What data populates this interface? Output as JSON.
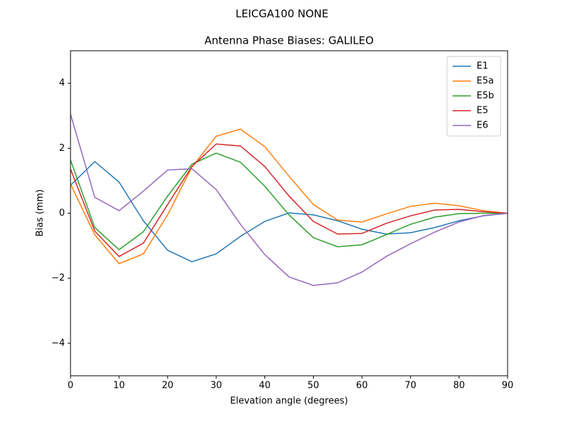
{
  "chart_data": {
    "type": "line",
    "suptitle": "LEICGA100        NONE",
    "title": "Antenna Phase Biases: GALILEO",
    "x_label": "Elevation angle (degrees)",
    "y_label": "Bias (mm)",
    "x": [
      0,
      5,
      10,
      15,
      20,
      25,
      30,
      35,
      40,
      45,
      50,
      55,
      60,
      65,
      70,
      75,
      80,
      85,
      90
    ],
    "series": [
      {
        "name": "E1",
        "color": "#1f77b4",
        "values": [
          0.86,
          1.59,
          0.96,
          -0.23,
          -1.14,
          -1.49,
          -1.25,
          -0.71,
          -0.25,
          0.01,
          -0.05,
          -0.23,
          -0.49,
          -0.64,
          -0.6,
          -0.44,
          -0.23,
          -0.08,
          0
        ]
      },
      {
        "name": "E5a",
        "color": "#ff7f0e",
        "values": [
          0.9,
          -0.66,
          -1.55,
          -1.25,
          -0.05,
          1.42,
          2.37,
          2.59,
          2.05,
          1.14,
          0.27,
          -0.21,
          -0.27,
          -0.02,
          0.21,
          0.31,
          0.23,
          0.08,
          0
        ]
      },
      {
        "name": "E5b",
        "color": "#2ca02c",
        "values": [
          1.64,
          -0.44,
          -1.12,
          -0.57,
          0.53,
          1.51,
          1.85,
          1.57,
          0.83,
          -0.05,
          -0.75,
          -1.03,
          -0.97,
          -0.66,
          -0.34,
          -0.12,
          -0.01,
          0,
          0
        ]
      },
      {
        "name": "E5",
        "color": "#d62728",
        "values": [
          1.36,
          -0.55,
          -1.33,
          -0.92,
          0.27,
          1.44,
          2.13,
          2.07,
          1.44,
          0.53,
          -0.25,
          -0.64,
          -0.62,
          -0.31,
          -0.08,
          0.1,
          0.12,
          0.05,
          0
        ]
      },
      {
        "name": "E6",
        "color": "#9467bd",
        "values": [
          3.05,
          0.49,
          0.08,
          0.68,
          1.33,
          1.37,
          0.73,
          -0.34,
          -1.27,
          -1.96,
          -2.22,
          -2.14,
          -1.81,
          -1.33,
          -0.94,
          -0.58,
          -0.27,
          -0.07,
          0
        ]
      }
    ],
    "xlim": [
      0,
      90
    ],
    "xticks": [
      0,
      10,
      20,
      30,
      40,
      50,
      60,
      70,
      80,
      90
    ],
    "ylim": [
      -5,
      5
    ],
    "yticks": [
      {
        "value": -4,
        "label": "−4"
      },
      {
        "value": -2,
        "label": "−2"
      },
      0,
      2,
      4
    ],
    "grid": false,
    "legend": "upper right"
  }
}
